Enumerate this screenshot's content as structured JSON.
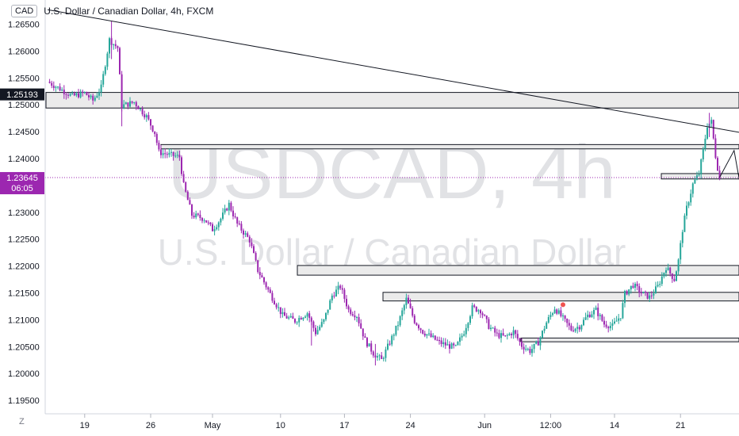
{
  "header": {
    "currency_badge": "CAD",
    "title": "U.S. Dollar / Canadian Dollar, 4h, FXCM"
  },
  "watermark": {
    "symbol": "USDCAD, 4h",
    "name": "U.S. Dollar / Canadian Dollar"
  },
  "price_scale": {
    "labels": [
      "1.26500",
      "1.26000",
      "1.25500",
      "1.25000",
      "1.24500",
      "1.24000",
      "1.23500",
      "1.23000",
      "1.22500",
      "1.22000",
      "1.21500",
      "1.21000",
      "1.20500",
      "1.20000",
      "1.19500"
    ],
    "marker_price": "1.25193",
    "current_price": "1.23645",
    "countdown": "06:05"
  },
  "time_scale": {
    "labels": [
      "19",
      "26",
      "May",
      "10",
      "17",
      "24",
      "Jun",
      "12:00",
      "14",
      "21"
    ]
  },
  "zoom_button": "Z",
  "colors": {
    "up_candle": "#26a69a",
    "down_candle": "#9c27b0",
    "current_price": "#9c27b0",
    "zone_fill": "#ebebeb",
    "marker_dot": "#ef5350"
  },
  "chart_data": {
    "type": "candlestick",
    "symbol": "USDCAD",
    "timeframe": "4h",
    "source": "FXCM",
    "ylim": [
      1.1925,
      1.2695
    ],
    "path_points": [
      {
        "i": 0,
        "p": 1.2543
      },
      {
        "i": 5,
        "p": 1.2532
      },
      {
        "i": 12,
        "p": 1.2516
      },
      {
        "i": 18,
        "p": 1.2522
      },
      {
        "i": 22,
        "p": 1.2508
      },
      {
        "i": 26,
        "p": 1.2532
      },
      {
        "i": 30,
        "p": 1.2621
      },
      {
        "i": 34,
        "p": 1.2606
      },
      {
        "i": 36,
        "p": 1.2498
      },
      {
        "i": 42,
        "p": 1.2505
      },
      {
        "i": 48,
        "p": 1.2478
      },
      {
        "i": 52,
        "p": 1.2448
      },
      {
        "i": 54,
        "p": 1.2412
      },
      {
        "i": 58,
        "p": 1.2408
      },
      {
        "i": 64,
        "p": 1.2403
      },
      {
        "i": 66,
        "p": 1.235
      },
      {
        "i": 70,
        "p": 1.2295
      },
      {
        "i": 76,
        "p": 1.2288
      },
      {
        "i": 80,
        "p": 1.2268
      },
      {
        "i": 84,
        "p": 1.2288
      },
      {
        "i": 88,
        "p": 1.2315
      },
      {
        "i": 92,
        "p": 1.2278
      },
      {
        "i": 98,
        "p": 1.2248
      },
      {
        "i": 102,
        "p": 1.2192
      },
      {
        "i": 108,
        "p": 1.2148
      },
      {
        "i": 114,
        "p": 1.2108
      },
      {
        "i": 120,
        "p": 1.2098
      },
      {
        "i": 126,
        "p": 1.2113
      },
      {
        "i": 130,
        "p": 1.2076
      },
      {
        "i": 134,
        "p": 1.2098
      },
      {
        "i": 138,
        "p": 1.2145
      },
      {
        "i": 142,
        "p": 1.2162
      },
      {
        "i": 146,
        "p": 1.2118
      },
      {
        "i": 150,
        "p": 1.2108
      },
      {
        "i": 154,
        "p": 1.2062
      },
      {
        "i": 158,
        "p": 1.2038
      },
      {
        "i": 162,
        "p": 1.2025
      },
      {
        "i": 166,
        "p": 1.2058
      },
      {
        "i": 170,
        "p": 1.2092
      },
      {
        "i": 174,
        "p": 1.2138
      },
      {
        "i": 178,
        "p": 1.2098
      },
      {
        "i": 182,
        "p": 1.2078
      },
      {
        "i": 186,
        "p": 1.2068
      },
      {
        "i": 190,
        "p": 1.2058
      },
      {
        "i": 194,
        "p": 1.2052
      },
      {
        "i": 198,
        "p": 1.2048
      },
      {
        "i": 202,
        "p": 1.2078
      },
      {
        "i": 206,
        "p": 1.2122
      },
      {
        "i": 210,
        "p": 1.2118
      },
      {
        "i": 214,
        "p": 1.2088
      },
      {
        "i": 218,
        "p": 1.2072
      },
      {
        "i": 222,
        "p": 1.2068
      },
      {
        "i": 226,
        "p": 1.2078
      },
      {
        "i": 230,
        "p": 1.2052
      },
      {
        "i": 234,
        "p": 1.2042
      },
      {
        "i": 238,
        "p": 1.2058
      },
      {
        "i": 242,
        "p": 1.2095
      },
      {
        "i": 246,
        "p": 1.2122
      },
      {
        "i": 250,
        "p": 1.2102
      },
      {
        "i": 254,
        "p": 1.2082
      },
      {
        "i": 258,
        "p": 1.2088
      },
      {
        "i": 262,
        "p": 1.2108
      },
      {
        "i": 266,
        "p": 1.2118
      },
      {
        "i": 270,
        "p": 1.2092
      },
      {
        "i": 274,
        "p": 1.2088
      },
      {
        "i": 278,
        "p": 1.2108
      },
      {
        "i": 280,
        "p": 1.2148
      },
      {
        "i": 284,
        "p": 1.2165
      },
      {
        "i": 288,
        "p": 1.215
      },
      {
        "i": 292,
        "p": 1.2142
      },
      {
        "i": 296,
        "p": 1.2162
      },
      {
        "i": 300,
        "p": 1.2198
      },
      {
        "i": 304,
        "p": 1.2175
      },
      {
        "i": 306,
        "p": 1.221
      },
      {
        "i": 308,
        "p": 1.2268
      },
      {
        "i": 310,
        "p": 1.2308
      },
      {
        "i": 313,
        "p": 1.2352
      },
      {
        "i": 316,
        "p": 1.2372
      },
      {
        "i": 318,
        "p": 1.2415
      },
      {
        "i": 320,
        "p": 1.2462
      },
      {
        "i": 322,
        "p": 1.2468
      },
      {
        "i": 324,
        "p": 1.2405
      },
      {
        "i": 326,
        "p": 1.2362
      }
    ],
    "zones": [
      {
        "from": 1.2494,
        "to": 1.2523
      },
      {
        "from": 1.2418,
        "to": 1.2426
      },
      {
        "from": 1.2362,
        "to": 1.2372
      },
      {
        "from": 1.2183,
        "to": 1.2201
      },
      {
        "from": 1.2135,
        "to": 1.2151
      },
      {
        "from": 1.2059,
        "to": 1.2066
      }
    ],
    "trendline": {
      "from": {
        "i": 0,
        "p": 1.2677
      },
      "to": {
        "i": 344,
        "p": 1.2443
      }
    },
    "projection": [
      {
        "i": 326,
        "p": 1.2365
      },
      {
        "i": 333,
        "p": 1.2415
      },
      {
        "i": 343,
        "p": 1.2201
      }
    ],
    "marker": {
      "i": 250,
      "p": 1.2128
    }
  }
}
